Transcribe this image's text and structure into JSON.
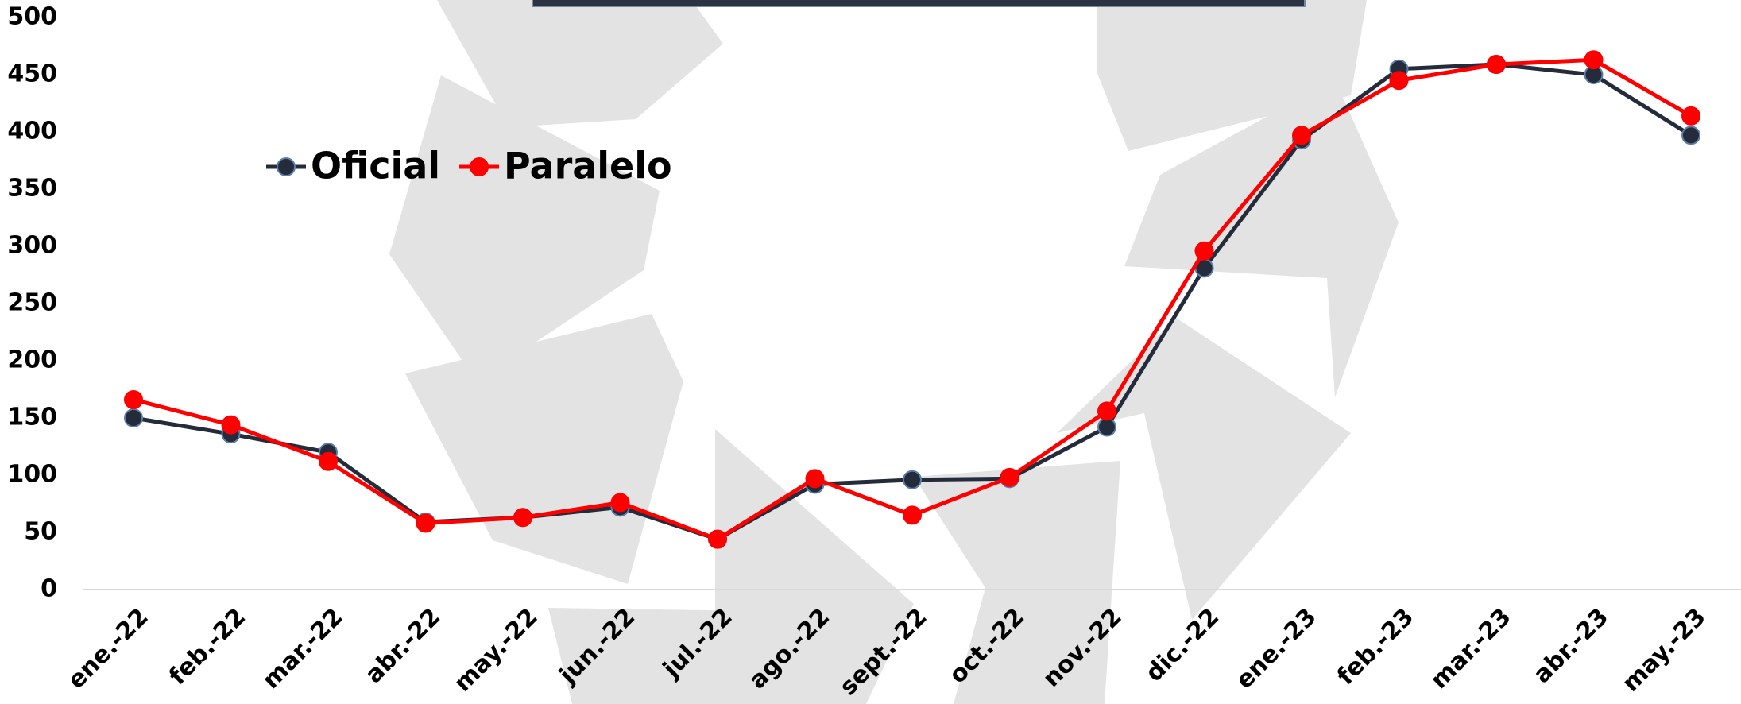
{
  "chart_data": {
    "type": "line",
    "categories": [
      "ene.-22",
      "feb.-22",
      "mar.-22",
      "abr.-22",
      "may.-22",
      "jun.-22",
      "jul.-22",
      "ago.-22",
      "sept.-22",
      "oct.-22",
      "nov.-22",
      "dic.-22",
      "ene.-23",
      "feb.-23",
      "mar.-23",
      "abr.-23",
      "may.-23"
    ],
    "series": [
      {
        "name": "Oficial",
        "color": "#242b3a",
        "values": [
          150,
          136,
          120,
          59,
          63,
          72,
          44,
          92,
          96,
          97,
          142,
          281,
          393,
          455,
          459,
          450,
          397
        ]
      },
      {
        "name": "Paralelo",
        "color": "#ff0000",
        "values": [
          166,
          144,
          112,
          58,
          63,
          76,
          44,
          97,
          65,
          98,
          156,
          296,
          397,
          445,
          459,
          463,
          414
        ]
      }
    ],
    "ylim": [
      0,
      500
    ],
    "yticks": [
      0,
      50,
      100,
      150,
      200,
      250,
      300,
      350,
      400,
      450,
      500
    ],
    "grid": false,
    "legend": "top-left"
  }
}
